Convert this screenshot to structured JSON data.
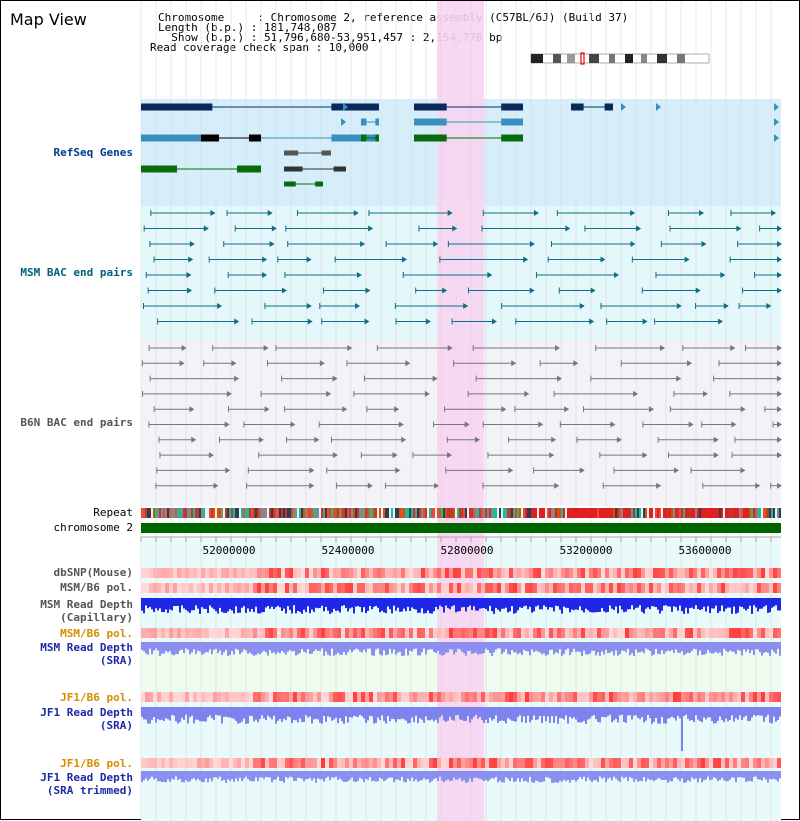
{
  "header": {
    "title": "Map View",
    "chromosome_line": "Chromosome     : Chromosome 2, reference assembly (C57BL/6J) (Build 37)",
    "length_line": "Length (b.p.) : 181,748,087",
    "show_line": "  Show (b.p.) : 51,796,680-53,951,457 : 2,154,778 bp",
    "coverage_line": "Read coverage check span : 10,000"
  },
  "tracks": {
    "refseq": "RefSeq Genes",
    "msm_bac": "MSM BAC end pairs",
    "b6n_bac": "B6N BAC end pairs",
    "repeat": "Repeat",
    "chromosome": "chromosome 2",
    "dbsnp": "dbSNP(Mouse)",
    "msm_pol": "MSM/B6 pol.",
    "msm_depth_cap_1": "MSM Read Depth",
    "msm_depth_cap_2": "(Capillary)",
    "msm_pol_sra": "MSM/B6 pol.",
    "msm_depth_sra_1": "MSM Read Depth",
    "msm_depth_sra_2": "(SRA)",
    "jf1_pol": "JF1/B6 pol.",
    "jf1_depth_sra_1": "JF1 Read Depth",
    "jf1_depth_sra_2": "(SRA)",
    "jf1_pol_trim": "JF1/B6 pol.",
    "jf1_depth_trim_1": "JF1 Read Depth",
    "jf1_depth_trim_2": "(SRA trimmed)"
  },
  "ruler": {
    "ticks": [
      "52000000",
      "52400000",
      "52800000",
      "53200000",
      "53600000"
    ]
  },
  "colors": {
    "refseq_bg": "#d6eefa",
    "bac_bg": "#e4f8fb",
    "b6n_bg": "#f4f4f8",
    "highlight": "#f7d4f1",
    "chromosome": "#006400",
    "depth_blue": "#1f27e6",
    "depth_lav": "#8a8ff0"
  }
}
